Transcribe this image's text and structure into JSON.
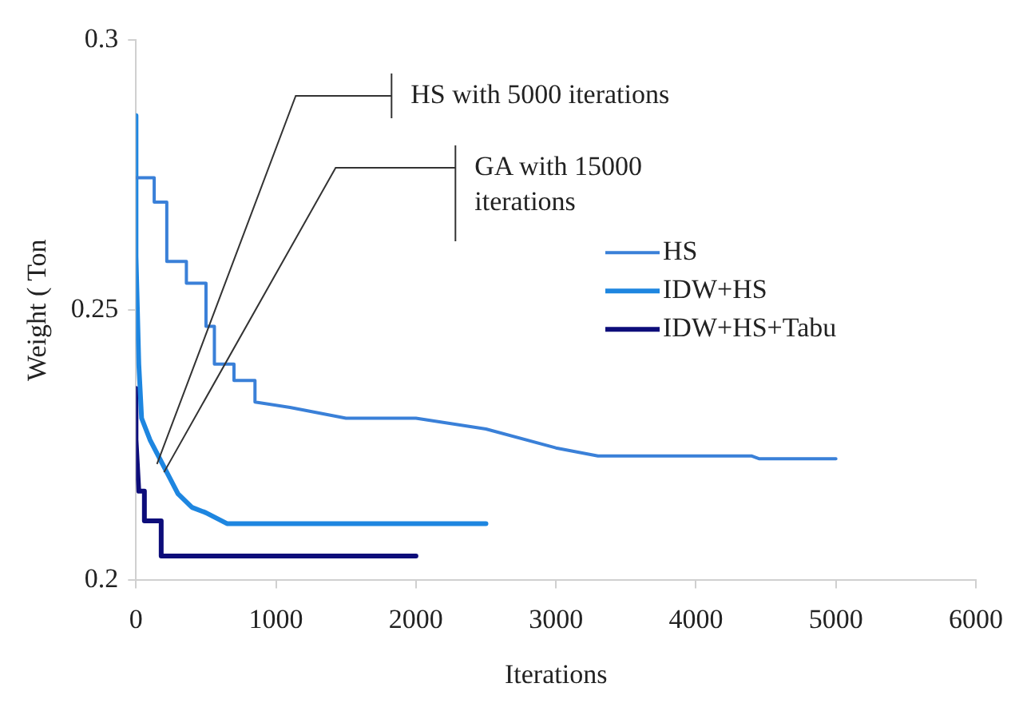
{
  "chart_data": {
    "type": "line",
    "xlabel": "Iterations",
    "ylabel": "Weight ( Ton",
    "xlim": [
      0,
      6000
    ],
    "xticks": [
      0,
      1000,
      2000,
      3000,
      4000,
      5000,
      6000
    ],
    "ylim": [
      0.2,
      0.3
    ],
    "yticks": [
      0.2,
      0.25,
      0.3
    ],
    "grid": false,
    "legend": "right",
    "marker": "none",
    "line_style": "solid",
    "series": [
      {
        "name": "HS",
        "color": "#3a80d8",
        "x": [
          0,
          0,
          130,
          130,
          220,
          220,
          360,
          360,
          500,
          500,
          560,
          560,
          700,
          700,
          850,
          850,
          1100,
          1500,
          2000,
          2500,
          3000,
          3300,
          4400,
          4450,
          5000
        ],
        "values": [
          0.2745,
          0.2745,
          0.2745,
          0.27,
          0.27,
          0.259,
          0.259,
          0.255,
          0.255,
          0.247,
          0.247,
          0.24,
          0.24,
          0.237,
          0.237,
          0.233,
          0.232,
          0.23,
          0.23,
          0.228,
          0.2245,
          0.223,
          0.223,
          0.2225,
          0.2225
        ]
      },
      {
        "name": "IDW+HS",
        "color": "#1e86e0",
        "x": [
          0,
          0,
          20,
          40,
          100,
          200,
          300,
          400,
          500,
          650,
          2500
        ],
        "values": [
          0.286,
          0.26,
          0.24,
          0.23,
          0.226,
          0.221,
          0.216,
          0.2135,
          0.2125,
          0.2105,
          0.2105
        ]
      },
      {
        "name": "IDW+HS+Tabu",
        "color": "#0d0d7a",
        "x": [
          0,
          0,
          20,
          60,
          60,
          180,
          180,
          2000
        ],
        "values": [
          0.2355,
          0.226,
          0.2165,
          0.2165,
          0.211,
          0.211,
          0.2045,
          0.2045
        ]
      }
    ],
    "annotations": [
      {
        "text": "HS with 5000 iterations",
        "x": 150,
        "y": 0.2215
      },
      {
        "text": "GA with 15000 iterations",
        "x": 200,
        "y": 0.22
      }
    ]
  }
}
